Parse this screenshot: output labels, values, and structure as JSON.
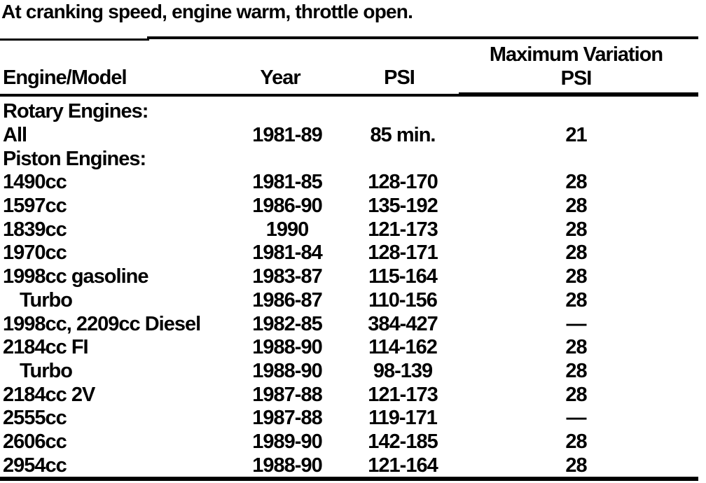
{
  "intro": {
    "text": "At cranking speed, engine warm, throttle open."
  },
  "colors": {
    "text": "#000000",
    "background": "#ffffff",
    "rule": "#000000"
  },
  "table": {
    "headers": {
      "engine_model": "Engine/Model",
      "year": "Year",
      "psi": "PSI",
      "max_variation_line1": "Maximum Variation",
      "max_variation_line2": "PSI"
    },
    "rows": [
      {
        "type": "section",
        "label": "Rotary Engines:"
      },
      {
        "type": "data",
        "label": "All",
        "year": "1981-89",
        "psi": "85 min.",
        "max_variation": "21"
      },
      {
        "type": "section",
        "label": "Piston Engines:"
      },
      {
        "type": "data",
        "label": "1490cc",
        "year": "1981-85",
        "psi": "128-170",
        "max_variation": "28"
      },
      {
        "type": "data",
        "label": "1597cc",
        "year": "1986-90",
        "psi": "135-192",
        "max_variation": "28"
      },
      {
        "type": "data",
        "label": "1839cc",
        "year": "1990",
        "psi": "121-173",
        "max_variation": "28"
      },
      {
        "type": "data",
        "label": "1970cc",
        "year": "1981-84",
        "psi": "128-171",
        "max_variation": "28"
      },
      {
        "type": "data",
        "label": "1998cc gasoline",
        "year": "1983-87",
        "psi": "115-164",
        "max_variation": "28"
      },
      {
        "type": "data",
        "label": "Turbo",
        "indent": true,
        "year": "1986-87",
        "psi": "110-156",
        "max_variation": "28"
      },
      {
        "type": "data",
        "label": "1998cc, 2209cc Diesel",
        "year": "1982-85",
        "psi": "384-427",
        "max_variation": "—"
      },
      {
        "type": "data",
        "label": "2184cc FI",
        "year": "1988-90",
        "psi": "114-162",
        "max_variation": "28"
      },
      {
        "type": "data",
        "label": "Turbo",
        "indent": true,
        "year": "1988-90",
        "psi": "98-139",
        "max_variation": "28"
      },
      {
        "type": "data",
        "label": "2184cc 2V",
        "year": "1987-88",
        "psi": "121-173",
        "max_variation": "28"
      },
      {
        "type": "data",
        "label": "2555cc",
        "year": "1987-88",
        "psi": "119-171",
        "max_variation": "—"
      },
      {
        "type": "data",
        "label": "2606cc",
        "year": "1989-90",
        "psi": "142-185",
        "max_variation": "28"
      },
      {
        "type": "data",
        "label": "2954cc",
        "year": "1988-90",
        "psi": "121-164",
        "max_variation": "28"
      }
    ]
  }
}
